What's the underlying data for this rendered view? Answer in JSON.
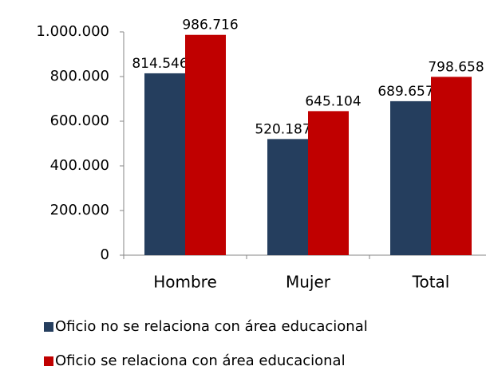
{
  "chart_data": {
    "type": "bar",
    "categories": [
      "Hombre",
      "Mujer",
      "Total"
    ],
    "series": [
      {
        "name": "Oficio no se relaciona con área educacional",
        "color": "#253e5e",
        "values": [
          814546,
          520187,
          689657
        ],
        "value_labels": [
          "814.546",
          "520.187",
          "689.657"
        ]
      },
      {
        "name": "Oficio se relaciona con área educacional",
        "color": "#c00000",
        "values": [
          986716,
          645104,
          798658
        ],
        "value_labels": [
          "986.716",
          "645.104",
          "798.658"
        ]
      }
    ],
    "ylim": [
      0,
      1000000
    ],
    "yticks": [
      0,
      {
        "value": 200000,
        "label": "200.000"
      },
      {
        "value": 400000,
        "label": "400.000"
      },
      {
        "value": 600000,
        "label": "600.000"
      },
      {
        "value": 800000,
        "label": "800.000"
      },
      {
        "value": 1000000,
        "label": "1.000.000"
      }
    ],
    "grid": false
  }
}
